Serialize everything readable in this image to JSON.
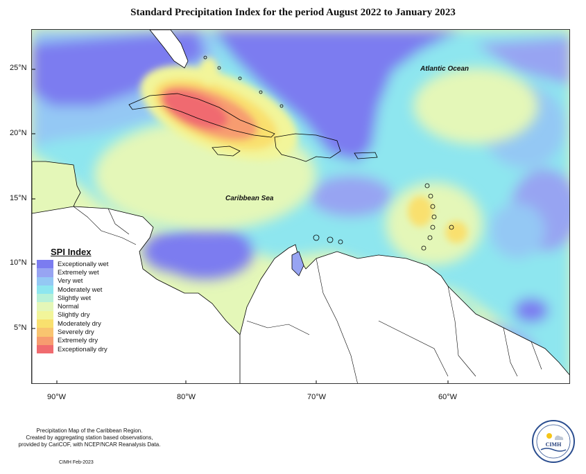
{
  "title": "Standard Precipitation Index for the period August 2022 to January 2023",
  "map": {
    "labels": {
      "atlantic": "Atlantic Ocean",
      "caribbean": "Caribbean Sea"
    },
    "lat_ticks": [
      "25°N",
      "20°N",
      "15°N",
      "10°N",
      "5°N"
    ],
    "lon_ticks": [
      "90°W",
      "80°W",
      "70°W",
      "60°W"
    ]
  },
  "legend": {
    "title": "SPI Index",
    "items": [
      {
        "label": "Exceptionally wet",
        "color": "#7b7cf0"
      },
      {
        "label": "Extremely wet",
        "color": "#97a4f2"
      },
      {
        "label": "Very wet",
        "color": "#94c8f4"
      },
      {
        "label": "Moderately wet",
        "color": "#8ee6ef"
      },
      {
        "label": "Slightly wet",
        "color": "#b8f1d8"
      },
      {
        "label": "Normal",
        "color": "#e4f7b8"
      },
      {
        "label": "Slightly dry",
        "color": "#f2f59a"
      },
      {
        "label": "Moderately dry",
        "color": "#f9e06e"
      },
      {
        "label": "Severely dry",
        "color": "#f9c46f"
      },
      {
        "label": "Extremely dry",
        "color": "#f79c6f"
      },
      {
        "label": "Exceptionally dry",
        "color": "#f06b6f"
      }
    ]
  },
  "credits": {
    "line1": "Precipitation Map of the Caribbean Region.",
    "line2": "Created by aggregating station based observations,",
    "line3": "provided by CariCOF, with NCEP/NCAR Reanalysis Data.",
    "date": "CIMH Feb-2023"
  },
  "logo": {
    "text": "CIMH",
    "icon": "sun-cloud-icon"
  }
}
